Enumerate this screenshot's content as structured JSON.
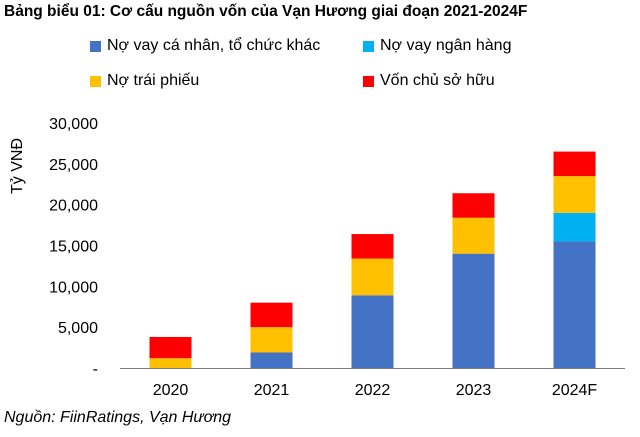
{
  "title": "Bảng biểu 01: Cơ cấu nguồn vốn của Vạn Hương giai đoạn 2021-2024F",
  "source": "Nguồn: FiinRatings, Vạn Hương",
  "colors": {
    "personal_loans": "#4472C4",
    "bank_loans": "#00B0F0",
    "bonds": "#FFC000",
    "equity": "#FF0000",
    "axis": "#7f7f7f"
  },
  "chart_data": {
    "type": "bar",
    "stacked": true,
    "categories": [
      "2020",
      "2021",
      "2022",
      "2023",
      "2024F"
    ],
    "ylabel": "Tỷ VNĐ",
    "ylim": [
      0,
      30000
    ],
    "yticks": [
      0,
      5000,
      10000,
      15000,
      20000,
      25000,
      30000
    ],
    "ytick_labels": [
      "-",
      "5,000",
      "10,000",
      "15,000",
      "20,000",
      "25,000",
      "30,000"
    ],
    "grid": false,
    "legend_position": "top",
    "series": [
      {
        "name": "Nợ vay cá nhân, tổ chức khác",
        "color": "#4472C4",
        "values": [
          0,
          1900,
          8900,
          14000,
          15500
        ]
      },
      {
        "name": "Nợ vay ngân hàng",
        "color": "#00B0F0",
        "values": [
          0,
          0,
          0,
          0,
          3500
        ]
      },
      {
        "name": "Nợ trái phiếu",
        "color": "#FFC000",
        "values": [
          1200,
          3100,
          4500,
          4400,
          4500
        ]
      },
      {
        "name": "Vốn chủ sở hữu",
        "color": "#FF0000",
        "values": [
          2600,
          3000,
          3000,
          3000,
          3000
        ]
      }
    ]
  }
}
